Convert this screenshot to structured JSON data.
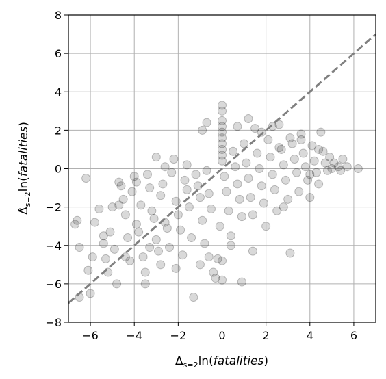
{
  "chart_data": {
    "type": "scatter",
    "title": "",
    "xlabel": {
      "base": "Δ",
      "sub": "s=2",
      "func": "ln(",
      "var": "fatalities",
      "close": ")"
    },
    "ylabel": {
      "base": "Δ̂",
      "sub": "s=2",
      "func": "ln(",
      "var": "fatalities",
      "close": ")"
    },
    "xlim": [
      -7,
      7
    ],
    "ylim": [
      -8,
      8
    ],
    "xticks": [
      -6,
      -4,
      -2,
      0,
      2,
      4,
      6
    ],
    "yticks": [
      -8,
      -6,
      -4,
      -2,
      0,
      2,
      4,
      6,
      8
    ],
    "xtick_labels": [
      "−6",
      "−4",
      "−2",
      "0",
      "2",
      "4",
      "6"
    ],
    "ytick_labels": [
      "−8",
      "−6",
      "−4",
      "−2",
      "0",
      "2",
      "4",
      "6",
      "8"
    ],
    "grid": true,
    "marker_color": "#000000",
    "marker_alpha": 0.15,
    "reference_line": {
      "type": "y=x",
      "color": "#808080",
      "style": "dashed"
    },
    "points": [
      [
        -6.7,
        -2.9
      ],
      [
        -6.6,
        -2.7
      ],
      [
        -6.5,
        -4.1
      ],
      [
        -6.2,
        -0.5
      ],
      [
        -6.5,
        -6.7
      ],
      [
        -6.0,
        -6.5
      ],
      [
        -5.9,
        -4.6
      ],
      [
        -5.8,
        -2.8
      ],
      [
        -5.6,
        -2.1
      ],
      [
        -5.4,
        -3.9
      ],
      [
        -5.3,
        -4.7
      ],
      [
        -5.2,
        -5.4
      ],
      [
        -5.1,
        -3.3
      ],
      [
        -5.0,
        -2.0
      ],
      [
        -4.9,
        -4.2
      ],
      [
        -4.8,
        -6.0
      ],
      [
        -4.7,
        -0.7
      ],
      [
        -4.6,
        -0.9
      ],
      [
        -4.5,
        -1.6
      ],
      [
        -4.4,
        -2.4
      ],
      [
        -4.3,
        -3.6
      ],
      [
        -4.2,
        -4.8
      ],
      [
        -4.1,
        -1.2
      ],
      [
        -4.0,
        -0.4
      ],
      [
        -3.9,
        -2.9
      ],
      [
        -3.8,
        -3.3
      ],
      [
        -3.7,
        -1.9
      ],
      [
        -3.6,
        -4.6
      ],
      [
        -3.5,
        -5.4
      ],
      [
        -3.4,
        -0.3
      ],
      [
        -3.3,
        -1.0
      ],
      [
        -3.2,
        -2.2
      ],
      [
        -3.1,
        -2.6
      ],
      [
        -3.0,
        0.6
      ],
      [
        -3.0,
        -3.7
      ],
      [
        -2.9,
        -4.3
      ],
      [
        -2.8,
        -1.4
      ],
      [
        -2.7,
        -0.8
      ],
      [
        -2.6,
        -2.8
      ],
      [
        -2.5,
        -3.1
      ],
      [
        -2.4,
        -4.1
      ],
      [
        -2.3,
        -0.2
      ],
      [
        -2.2,
        0.5
      ],
      [
        -2.1,
        -1.7
      ],
      [
        -2.0,
        -2.4
      ],
      [
        -1.9,
        -3.2
      ],
      [
        -1.8,
        -4.5
      ],
      [
        -1.7,
        -0.6
      ],
      [
        -1.6,
        -1.1
      ],
      [
        -1.5,
        -2.0
      ],
      [
        -1.4,
        -3.6
      ],
      [
        -1.3,
        -6.7
      ],
      [
        -1.2,
        -0.3
      ],
      [
        -1.1,
        -0.9
      ],
      [
        -1.0,
        -1.5
      ],
      [
        -0.9,
        -2.7
      ],
      [
        -0.8,
        -3.9
      ],
      [
        -0.7,
        2.4
      ],
      [
        -0.7,
        -0.1
      ],
      [
        -0.6,
        -1.3
      ],
      [
        -0.5,
        -2.1
      ],
      [
        -0.4,
        -5.4
      ],
      [
        -0.3,
        -5.7
      ],
      [
        -0.2,
        -4.7
      ],
      [
        -0.1,
        -3.0
      ],
      [
        0.0,
        3.3
      ],
      [
        0.0,
        3.0
      ],
      [
        0.0,
        2.5
      ],
      [
        0.0,
        2.2
      ],
      [
        0.0,
        1.9
      ],
      [
        0.0,
        1.6
      ],
      [
        0.0,
        1.3
      ],
      [
        0.0,
        1.0
      ],
      [
        0.0,
        0.7
      ],
      [
        0.0,
        0.4
      ],
      [
        0.0,
        -4.8
      ],
      [
        0.0,
        -5.8
      ],
      [
        0.1,
        -0.4
      ],
      [
        0.2,
        -1.2
      ],
      [
        0.3,
        -2.2
      ],
      [
        0.4,
        -3.5
      ],
      [
        0.5,
        0.9
      ],
      [
        0.6,
        0.1
      ],
      [
        0.7,
        -0.8
      ],
      [
        0.8,
        -1.6
      ],
      [
        0.9,
        -2.5
      ],
      [
        0.9,
        -5.9
      ],
      [
        1.0,
        1.3
      ],
      [
        1.1,
        0.3
      ],
      [
        1.2,
        -0.5
      ],
      [
        1.3,
        -1.5
      ],
      [
        1.4,
        -2.4
      ],
      [
        1.5,
        2.1
      ],
      [
        1.6,
        0.8
      ],
      [
        1.7,
        0.0
      ],
      [
        1.8,
        -0.9
      ],
      [
        1.9,
        -1.8
      ],
      [
        2.0,
        -3.0
      ],
      [
        2.1,
        1.5
      ],
      [
        2.2,
        0.6
      ],
      [
        2.3,
        -0.3
      ],
      [
        2.4,
        -1.1
      ],
      [
        2.5,
        -2.2
      ],
      [
        2.6,
        2.3
      ],
      [
        2.7,
        1.0
      ],
      [
        2.8,
        0.2
      ],
      [
        2.9,
        -0.6
      ],
      [
        3.0,
        -1.6
      ],
      [
        3.1,
        -4.4
      ],
      [
        3.2,
        1.3
      ],
      [
        3.3,
        0.5
      ],
      [
        3.4,
        -0.2
      ],
      [
        3.5,
        -1.2
      ],
      [
        3.6,
        1.8
      ],
      [
        3.7,
        0.8
      ],
      [
        3.8,
        0.1
      ],
      [
        3.9,
        -0.6
      ],
      [
        4.0,
        -1.5
      ],
      [
        4.1,
        1.2
      ],
      [
        4.2,
        0.4
      ],
      [
        4.3,
        -0.2
      ],
      [
        4.4,
        -0.8
      ],
      [
        4.5,
        1.9
      ],
      [
        4.6,
        0.9
      ],
      [
        4.7,
        0.3
      ],
      [
        4.8,
        -0.1
      ],
      [
        4.9,
        0.6
      ],
      [
        5.0,
        0.0
      ],
      [
        5.1,
        0.3
      ],
      [
        5.3,
        0.1
      ],
      [
        5.5,
        0.5
      ],
      [
        5.7,
        0.1
      ],
      [
        6.2,
        0.0
      ],
      [
        1.2,
        2.6
      ],
      [
        2.3,
        2.2
      ],
      [
        3.1,
        1.6
      ],
      [
        4.0,
        -0.3
      ],
      [
        2.8,
        -2.0
      ],
      [
        1.4,
        -4.3
      ],
      [
        -0.6,
        -4.6
      ],
      [
        -2.1,
        -5.2
      ],
      [
        -3.5,
        -6.0
      ],
      [
        -4.4,
        -4.6
      ],
      [
        -5.4,
        -3.5
      ],
      [
        -6.1,
        -5.3
      ],
      [
        -4.7,
        -1.9
      ],
      [
        -3.9,
        -0.7
      ],
      [
        -2.6,
        0.1
      ],
      [
        -1.6,
        0.2
      ],
      [
        -0.9,
        2.0
      ],
      [
        0.7,
        2.2
      ],
      [
        1.8,
        1.9
      ],
      [
        2.6,
        1.1
      ],
      [
        3.6,
        1.5
      ],
      [
        4.4,
        1.0
      ],
      [
        5.4,
        -0.1
      ],
      [
        0.4,
        -4.0
      ],
      [
        -1.0,
        -5.0
      ],
      [
        -2.8,
        -5.0
      ],
      [
        -3.3,
        -4.1
      ]
    ]
  }
}
